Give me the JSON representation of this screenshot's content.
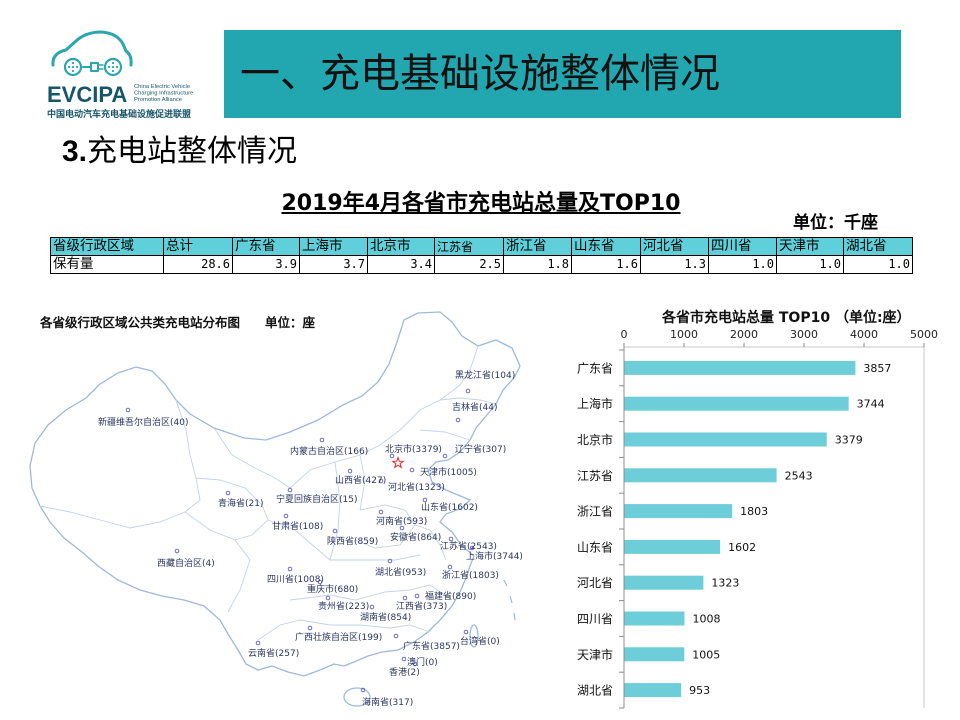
{
  "logo": {
    "name": "EVCIPA",
    "en_lines": [
      "China Electric Vehicle",
      "Charging Infrastructure",
      "Promotion Alliance"
    ],
    "cn": "中国电动汽车充电基础设施促进联盟",
    "icon": "car-plug-icon"
  },
  "header": {
    "title": "一、充电基础设施整体情况"
  },
  "section": {
    "number": "3.",
    "title": "充电站整体情况"
  },
  "colors": {
    "banner": "#22a6af",
    "table_header": "#5fd0d9",
    "logo_icon": "#2aa6ae",
    "logo_text": "#17566a",
    "capital_star": "#e8262b"
  },
  "map": {
    "title": "各省级行政区域公共类充电站分布图",
    "unit": "单位：座",
    "capital_icon": "star-icon",
    "labels": [
      "黑龙江省(104)",
      "吉林省(44)",
      "新疆维吾尔自治区(40)",
      "内蒙古自治区(166)",
      "北京市(3379)",
      "辽宁省(307)",
      "天津市(1005)",
      "山西省(427)",
      "河北省(1323)",
      "青海省(21)",
      "宁夏回族自治区(15)",
      "山东省(1602)",
      "甘肃省(108)",
      "河南省(593)",
      "陕西省(859)",
      "安徽省(864)",
      "江苏省(2543)",
      "上海市(3744)",
      "西藏自治区(4)",
      "湖北省(953)",
      "浙江省(1803)",
      "四川省(1008)",
      "重庆市(680)",
      "福建省(890)",
      "贵州省(223)",
      "江西省(373)",
      "湖南省(854)",
      "广西壮族自治区(199)",
      "广东省(3857)",
      "台湾省(0)",
      "云南省(257)",
      "澳门(0)",
      "香港(2)",
      "海南省(317)"
    ]
  },
  "chart_data": [
    {
      "type": "table",
      "title": "2019年4月各省市充电站总量及TOP10",
      "unit": "单位：千座",
      "header": [
        "省级行政区域",
        "总计",
        "广东省",
        "上海市",
        "北京市",
        "江苏省",
        "浙江省",
        "山东省",
        "河北省",
        "四川省",
        "天津市",
        "湖北省"
      ],
      "rows": [
        [
          "保有量",
          "28.6",
          "3.9",
          "3.7",
          "3.4",
          "2.5",
          "1.8",
          "1.6",
          "1.3",
          "1.0",
          "1.0",
          "1.0"
        ]
      ]
    },
    {
      "type": "bar",
      "orientation": "horizontal",
      "title": "各省市充电站总量 TOP10 （单位:座）",
      "categories": [
        "广东省",
        "上海市",
        "北京市",
        "江苏省",
        "浙江省",
        "山东省",
        "河北省",
        "四川省",
        "天津市",
        "湖北省"
      ],
      "values": [
        3857,
        3744,
        3379,
        2543,
        1803,
        1602,
        1323,
        1008,
        1005,
        953
      ],
      "xlim": [
        0,
        5000
      ],
      "ticks": [
        0,
        1000,
        2000,
        3000,
        4000,
        5000
      ],
      "axis_position": "top",
      "grid": false,
      "color": "#6dcdd8"
    }
  ]
}
